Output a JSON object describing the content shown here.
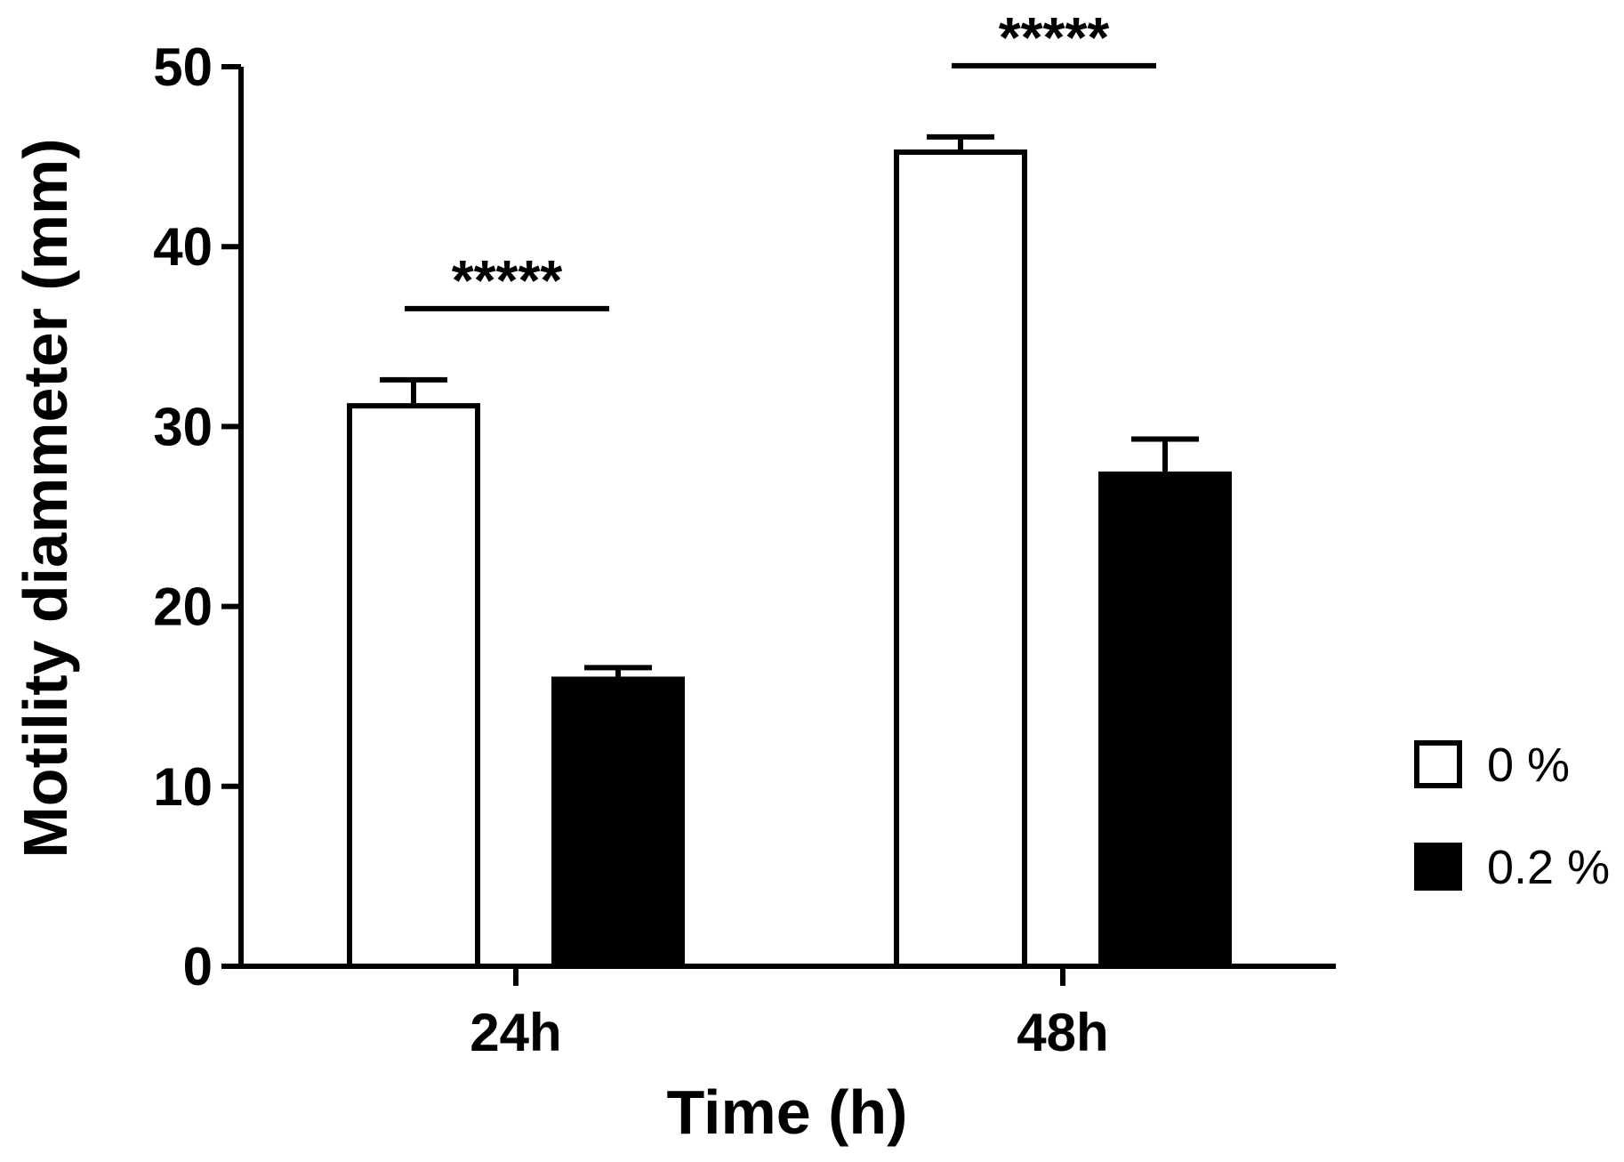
{
  "chart_data": {
    "type": "bar",
    "title": "",
    "xlabel": "Time (h)",
    "ylabel": "Motility diammeter (mm)",
    "categories": [
      "24h",
      "48h"
    ],
    "ylim": [
      0,
      50
    ],
    "yticks": [
      0,
      10,
      20,
      30,
      40,
      50
    ],
    "grid": false,
    "legend_position": "right",
    "series": [
      {
        "name": "0 %",
        "values": [
          31.3,
          45.4
        ],
        "errors": [
          1.3,
          0.7
        ],
        "fill": "#ffffff",
        "stroke": "#000000"
      },
      {
        "name": "0.2 %",
        "values": [
          16.1,
          27.5
        ],
        "errors": [
          0.5,
          1.8
        ],
        "fill": "#000000",
        "stroke": "#000000"
      }
    ],
    "annotations": [
      {
        "category": "24h",
        "label": "*****"
      },
      {
        "category": "48h",
        "label": "*****"
      }
    ]
  }
}
